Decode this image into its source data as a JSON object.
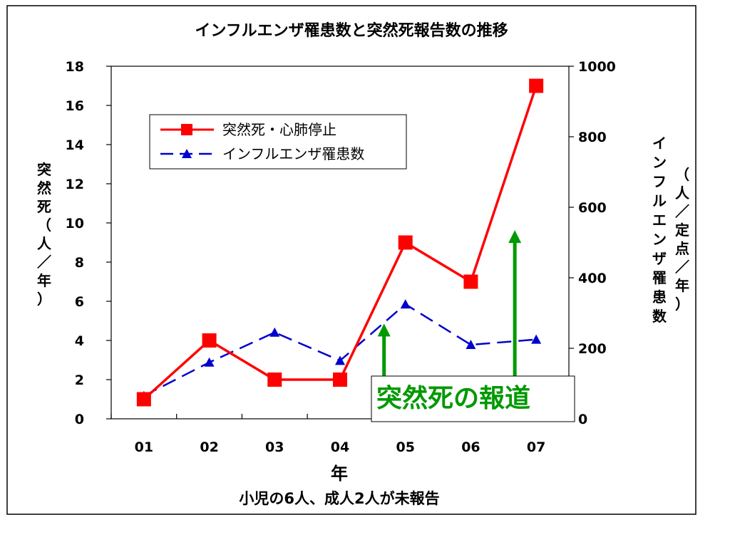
{
  "colors": {
    "sudden_death": "#ff0000",
    "influenza": "#0000cc",
    "annotation": "#009900"
  },
  "chart_data": {
    "type": "line",
    "title": "インフルエンザ罹患数と突然死報告数の推移",
    "xlabel": "年",
    "ylabel_left": "突然死（人／年）",
    "ylabel_right_main": "インフルエンザ罹患数",
    "ylabel_right_unit": "（人／定点／年）",
    "categories": [
      "01",
      "02",
      "03",
      "04",
      "05",
      "06",
      "07"
    ],
    "ylim_left": [
      0,
      18
    ],
    "yticks_left": [
      0,
      2,
      4,
      6,
      8,
      10,
      12,
      14,
      16,
      18
    ],
    "ylim_right": [
      0,
      1000
    ],
    "yticks_right": [
      0,
      200,
      400,
      600,
      800,
      1000
    ],
    "grid": false,
    "legend_position": "top-left",
    "series": [
      {
        "name": "突然死・心肺停止",
        "axis": "left",
        "style": "solid",
        "marker": "square",
        "color": "#ff0000",
        "values": [
          1,
          4,
          2,
          2,
          9,
          7,
          17
        ]
      },
      {
        "name": "インフルエンザ罹患数",
        "axis": "right",
        "style": "dashed",
        "marker": "triangle",
        "color": "#0000cc",
        "values": [
          65,
          160,
          245,
          165,
          325,
          210,
          225
        ]
      }
    ],
    "annotation": {
      "text": "突然死の報道",
      "arrow_categories": [
        "05",
        "07"
      ],
      "arrow_tops_right_axis": [
        270,
        535
      ]
    },
    "footnote": "小児の6人、成人2人が未報告"
  }
}
